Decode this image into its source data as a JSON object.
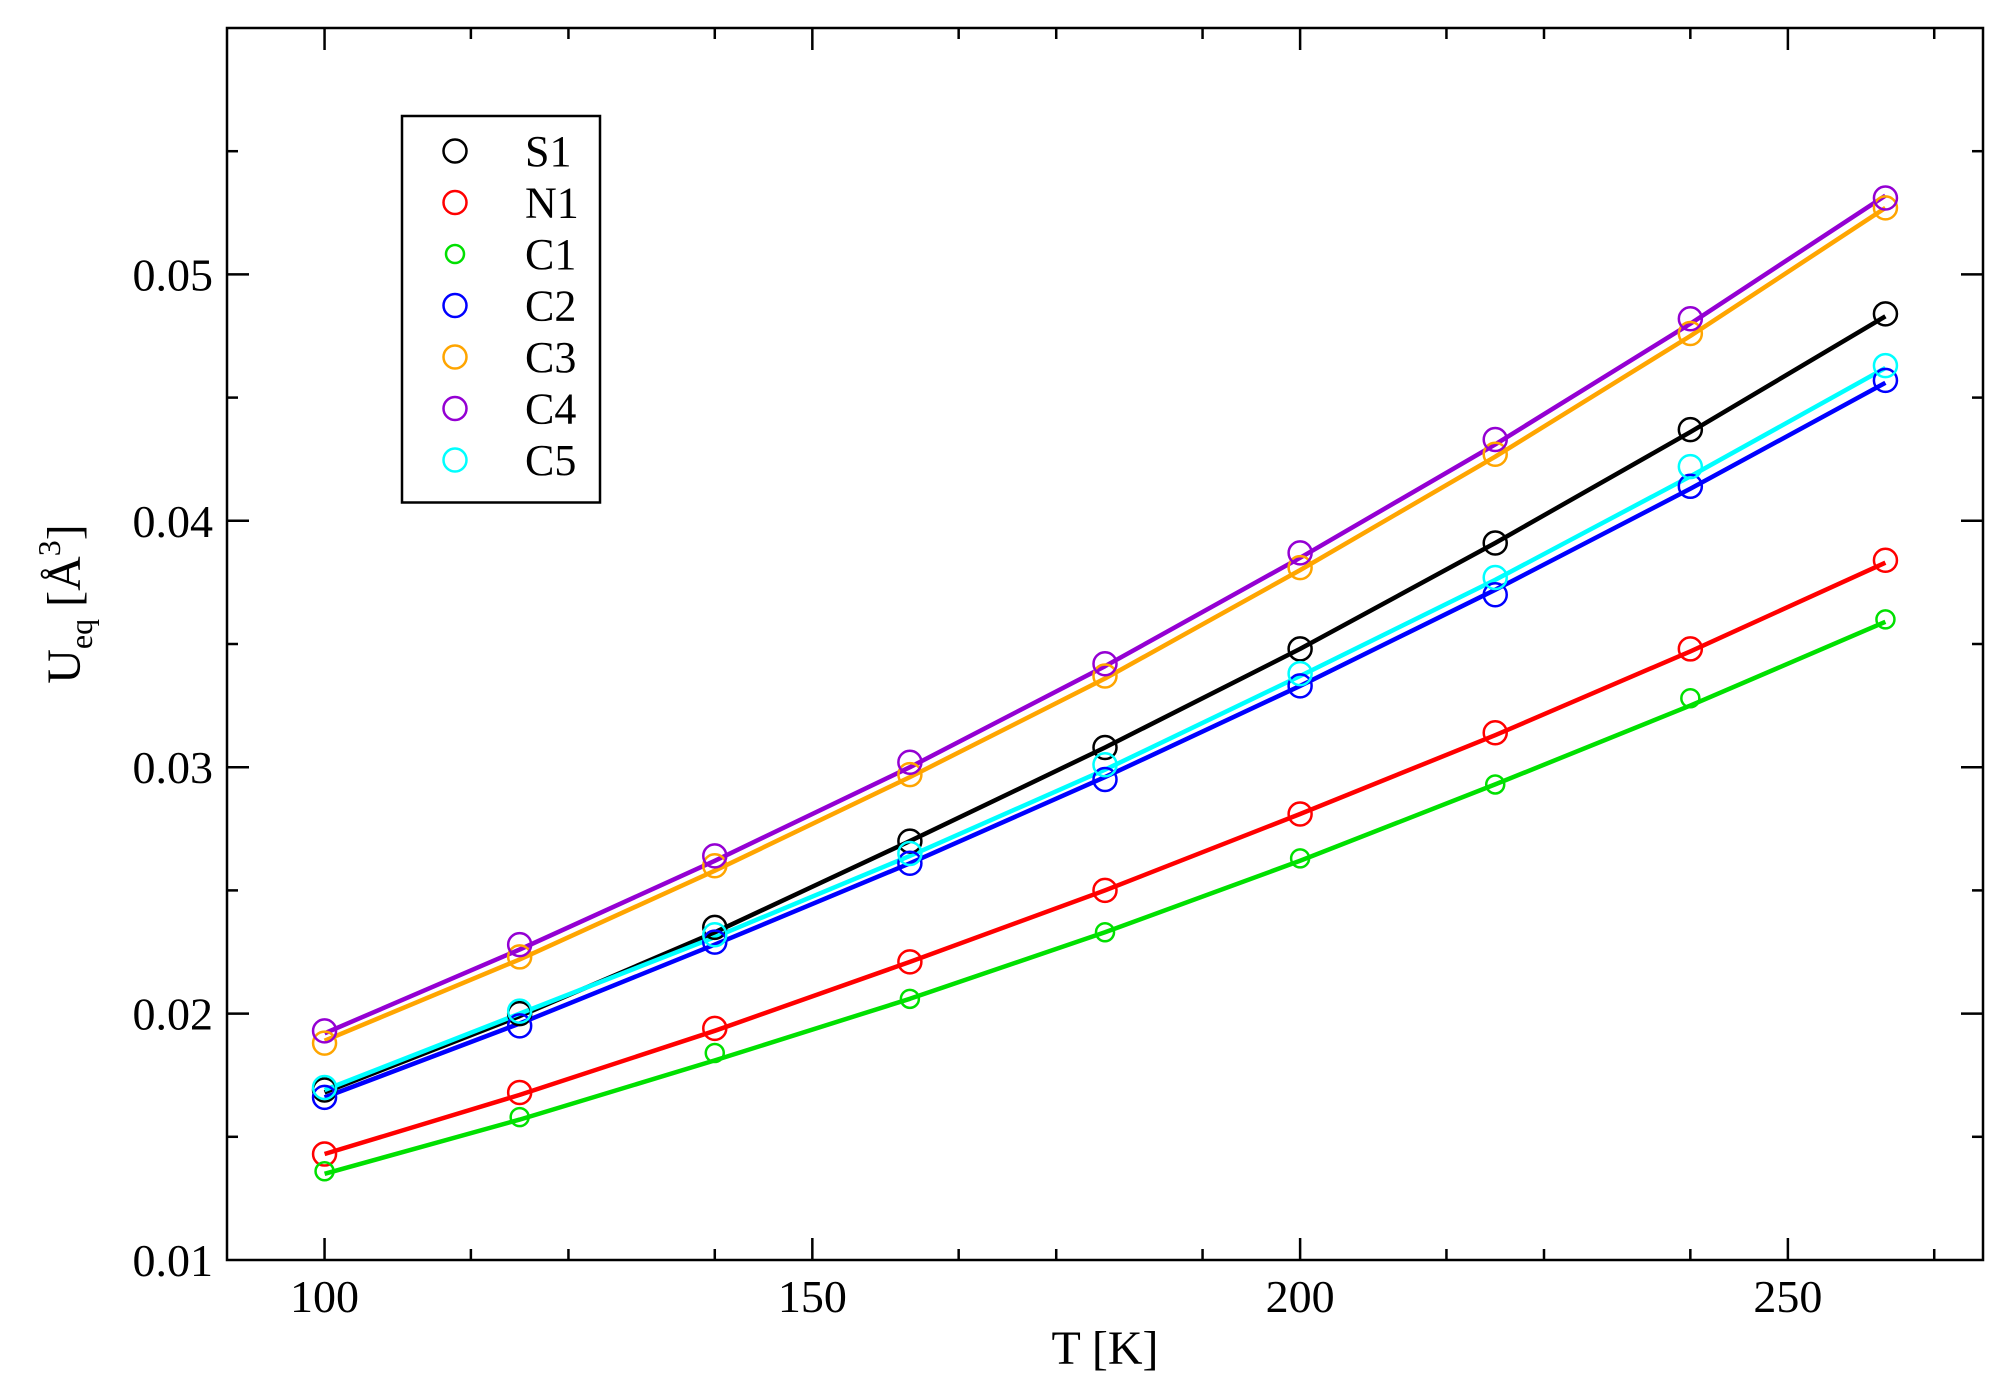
{
  "chart_data": {
    "type": "line",
    "title": "",
    "xlabel": "T [K]",
    "ylabel": {
      "main": "U",
      "sub": "eq",
      "unit_open": " [Å",
      "unit_sup": "3",
      "unit_close": "]"
    },
    "xlim": [
      90,
      270
    ],
    "ylim": [
      0.01,
      0.06
    ],
    "x_ticks": [
      100,
      150,
      200,
      250
    ],
    "x_tick_labels": [
      "100",
      "150",
      "200",
      "250"
    ],
    "x_minor_step": 25,
    "y_ticks": [
      0.01,
      0.02,
      0.03,
      0.04,
      0.05
    ],
    "y_tick_labels": [
      "0.01",
      "0.02",
      "0.03",
      "0.04",
      "0.05"
    ],
    "y_minor_step": 0.005,
    "grid": false,
    "legend_position": "top-left",
    "x": [
      100,
      120,
      140,
      160,
      180,
      200,
      220,
      240,
      260
    ],
    "series": [
      {
        "name": "S1",
        "color": "#000000",
        "marker": "large-circle",
        "values": [
          0.0169,
          0.02,
          0.0235,
          0.027,
          0.0308,
          0.0348,
          0.0391,
          0.0437,
          0.0484
        ]
      },
      {
        "name": "N1",
        "color": "#ff0000",
        "marker": "large-circle",
        "values": [
          0.0143,
          0.0168,
          0.0194,
          0.0221,
          0.025,
          0.0281,
          0.0314,
          0.0348,
          0.0384
        ]
      },
      {
        "name": "C1",
        "color": "#00e000",
        "marker": "small-circle",
        "values": [
          0.0136,
          0.0158,
          0.0184,
          0.0206,
          0.0233,
          0.0263,
          0.0293,
          0.0328,
          0.036
        ]
      },
      {
        "name": "C2",
        "color": "#0000ff",
        "marker": "large-circle",
        "values": [
          0.0166,
          0.0195,
          0.0229,
          0.0261,
          0.0295,
          0.0333,
          0.037,
          0.0414,
          0.0457
        ]
      },
      {
        "name": "C3",
        "color": "#ffa500",
        "marker": "large-circle",
        "values": [
          0.0188,
          0.0223,
          0.026,
          0.0297,
          0.0337,
          0.0381,
          0.0427,
          0.0476,
          0.0527
        ]
      },
      {
        "name": "C4",
        "color": "#9400d3",
        "marker": "large-circle",
        "values": [
          0.0193,
          0.0228,
          0.0264,
          0.0302,
          0.0342,
          0.0387,
          0.0433,
          0.0482,
          0.0531
        ]
      },
      {
        "name": "C5",
        "color": "#00ffff",
        "marker": "large-circle",
        "values": [
          0.017,
          0.0201,
          0.0232,
          0.0265,
          0.0301,
          0.0338,
          0.0377,
          0.0422,
          0.0463
        ]
      }
    ],
    "fit_series": [
      {
        "name": "S1",
        "values": [
          0.0168,
          0.0199,
          0.0233,
          0.027,
          0.0308,
          0.0348,
          0.0391,
          0.0436,
          0.0483
        ]
      },
      {
        "name": "N1",
        "values": [
          0.0143,
          0.0167,
          0.0193,
          0.0221,
          0.025,
          0.0281,
          0.0313,
          0.0347,
          0.0383
        ]
      },
      {
        "name": "C1",
        "values": [
          0.0135,
          0.0157,
          0.0181,
          0.0206,
          0.0233,
          0.0262,
          0.0293,
          0.0325,
          0.0359
        ]
      },
      {
        "name": "C2",
        "values": [
          0.0166,
          0.0196,
          0.0228,
          0.0261,
          0.0296,
          0.0333,
          0.0372,
          0.0413,
          0.0456
        ]
      },
      {
        "name": "C3",
        "values": [
          0.0189,
          0.0222,
          0.0258,
          0.0296,
          0.0336,
          0.038,
          0.0426,
          0.0475,
          0.0527
        ]
      },
      {
        "name": "C4",
        "values": [
          0.0192,
          0.0226,
          0.0262,
          0.03,
          0.0341,
          0.0385,
          0.0431,
          0.048,
          0.0532
        ]
      },
      {
        "name": "C5",
        "values": [
          0.0169,
          0.02,
          0.0231,
          0.0264,
          0.0299,
          0.0337,
          0.0376,
          0.0418,
          0.0462
        ]
      }
    ]
  }
}
